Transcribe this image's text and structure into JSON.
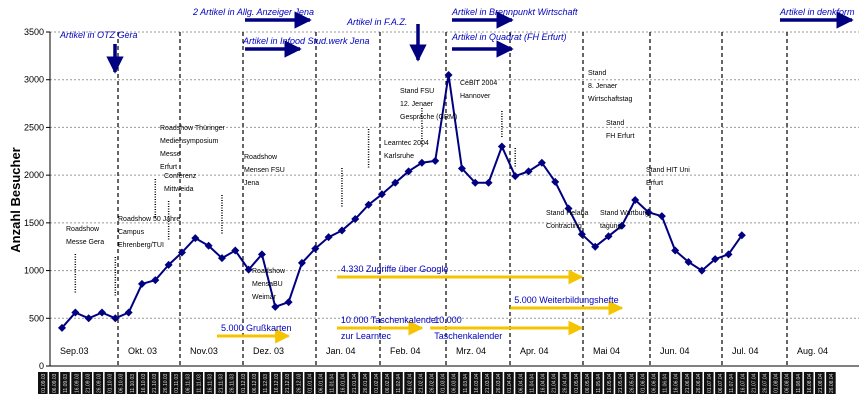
{
  "chart_data": {
    "type": "line",
    "ylabel": "Anzahl Besucher",
    "ylim": [
      0,
      3500
    ],
    "yticks": [
      0,
      500,
      1000,
      1500,
      2000,
      2500,
      3000,
      3500
    ],
    "grid": true,
    "months": [
      "Sep.03",
      "Okt. 03",
      "Nov.03",
      "Dez. 03",
      "Jan. 04",
      "Feb. 04",
      "Mrz. 04",
      "Apr. 04",
      "Mai 04",
      "Jun. 04",
      "Jul. 04",
      "Aug. 04"
    ],
    "series": [
      {
        "values": [
          400,
          560,
          500,
          560,
          500,
          560,
          860,
          900,
          1060,
          1190,
          1340,
          1260,
          1130,
          1210,
          1010,
          1170,
          620,
          670,
          1080,
          1230,
          1350,
          1420,
          1540,
          1690,
          1800,
          1920,
          2040,
          2130,
          2150,
          3050,
          2070,
          1920,
          1920,
          2300,
          1990,
          2040,
          2130,
          1930,
          1650,
          1380,
          1250,
          1360,
          1470,
          1740,
          1610,
          1570,
          1210,
          1090,
          1000,
          1120,
          1170,
          1370
        ],
        "color": "#000080"
      }
    ],
    "top_annotations": [
      {
        "text": "Artikel in OTZ Gera",
        "x": 4
      },
      {
        "text": "2 Artikel in Allg. Anzeiger Jena",
        "x": 12
      },
      {
        "text": "Artikel in Infood Stud.werk Jena",
        "x": 12
      },
      {
        "text": "Artikel in F.A.Z.",
        "x": 21
      },
      {
        "text": "Artikel in Brennpunkt Wirtschaft",
        "x": 26
      },
      {
        "text": "Artikel in Quadrat (FH Erfurt)",
        "x": 26
      },
      {
        "text": "Artikel in denkform",
        "x": 50
      }
    ],
    "event_labels": [
      {
        "lines": [
          "Roadshow",
          "Messe Gera"
        ],
        "x": 1
      },
      {
        "lines": [
          "Roadshow 50 Jahre",
          "Campus",
          "Ehrenberg/TUI"
        ],
        "x": 4
      },
      {
        "lines": [
          "Roadshow Thüringer",
          "Mediensymposium",
          "Messe",
          "Erfurt"
        ],
        "x": 7
      },
      {
        "lines": [
          "Conferenz",
          "Mittweida"
        ],
        "x": 8
      },
      {
        "lines": [
          "Roadshow",
          "Mensen FSU",
          "Jena"
        ],
        "x": 12
      },
      {
        "lines": [
          "Roadshow",
          "MensaBU",
          "Weimar"
        ],
        "x": 13
      },
      {
        "lines": [
          "Learntec 2004",
          "Karlsruhe"
        ],
        "x": 21
      },
      {
        "lines": [
          "Stand FSU",
          "12. Jenaer",
          "Gespräche (GRM)"
        ],
        "x": 23
      },
      {
        "lines": [
          "CeBIT 2004",
          "Hannover"
        ],
        "x": 27
      },
      {
        "lines": [
          "Stand",
          "8. Jenaer",
          "Wirtschaftstag"
        ],
        "x": 33
      },
      {
        "lines": [
          "Stand",
          "FH Erfurt"
        ],
        "x": 34
      },
      {
        "lines": [
          "Stand HIT Uni",
          "Erfurt"
        ],
        "x": 37
      },
      {
        "lines": [
          "Stand Helaba",
          "Contracting"
        ],
        "x": 32
      },
      {
        "lines": [
          "Stand Wartburg",
          "tagung"
        ],
        "x": 34
      }
    ],
    "campaigns": [
      {
        "text": "4.330 Zugriffe über Google",
        "x_start": 21,
        "x_end": 39
      },
      {
        "text": "5.000 Grußkarten",
        "x_start": 12,
        "x_end": 17
      },
      {
        "text": "10.000 Taschenkalender",
        "x2": "zur Learntec",
        "x_start": 21,
        "x_end": 27
      },
      {
        "text": "10.000",
        "x2": "Taschenkalender",
        "x_start": 28,
        "x_end": 39
      },
      {
        "text": "5.000 Weiterbildungshefte",
        "x_start": 34,
        "x_end": 42
      }
    ],
    "xtick_labels": [
      "01.09.03",
      "06.09.03",
      "11.09.03",
      "16.09.03",
      "21.09.03",
      "26.09.03",
      "01.10.03",
      "06.10.03",
      "11.10.03",
      "16.10.03",
      "21.10.03",
      "26.10.03",
      "01.11.03",
      "06.11.03",
      "11.11.03",
      "16.11.03",
      "21.11.03",
      "26.11.03",
      "01.12.03",
      "06.12.03",
      "11.12.03",
      "16.12.03",
      "21.12.03",
      "26.12.03",
      "01.01.04",
      "06.01.04",
      "11.01.04",
      "16.01.04",
      "21.01.04",
      "26.01.04",
      "01.02.04",
      "06.02.04",
      "11.02.04",
      "16.02.04",
      "21.02.04",
      "26.02.04",
      "01.03.04",
      "06.03.04",
      "11.03.04",
      "16.03.04",
      "21.03.04",
      "26.03.04",
      "01.04.04",
      "06.04.04",
      "11.04.04",
      "16.04.04",
      "21.04.04",
      "26.04.04",
      "01.05.04",
      "06.05.04",
      "11.05.04",
      "16.05.04",
      "21.05.04",
      "26.05.04",
      "01.06.04",
      "06.06.04",
      "11.06.04",
      "16.06.04",
      "21.06.04",
      "26.06.04",
      "01.07.04",
      "06.07.04",
      "11.07.04",
      "16.07.04",
      "21.07.04",
      "26.07.04",
      "01.08.04",
      "06.08.04",
      "11.08.04",
      "16.08.04",
      "21.08.04",
      "26.08.04"
    ]
  }
}
